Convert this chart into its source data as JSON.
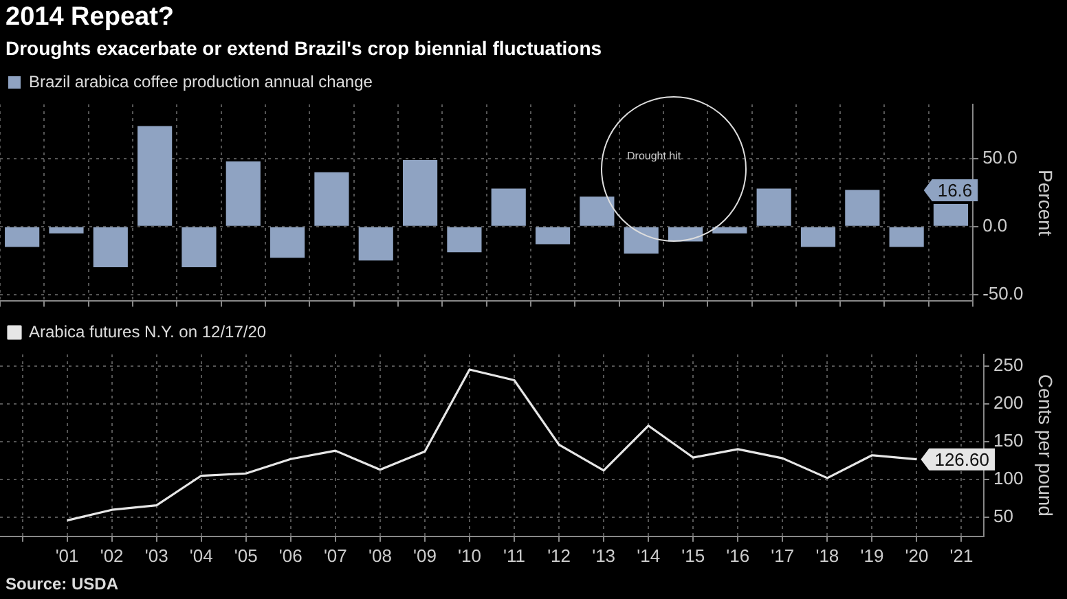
{
  "chart_data": [
    {
      "type": "bar",
      "title": "2014 Repeat?",
      "subtitle": "Droughts exacerbate or extend Brazil's crop biennial fluctuations",
      "ylabel": "Percent",
      "categories": [
        null,
        null,
        null,
        null,
        null,
        null,
        null,
        null,
        null,
        null,
        null,
        null,
        null,
        null,
        null,
        null,
        null,
        null,
        null,
        null,
        null,
        null
      ],
      "series": [
        {
          "name": "Brazil arabica coffee production annual change",
          "color": "#8fa3c2",
          "values": [
            -15,
            -5,
            -30,
            74,
            -30,
            48,
            -23,
            40,
            -25,
            49,
            -19,
            28,
            -13,
            22,
            -20,
            -11,
            -5,
            28,
            -15,
            27,
            -15,
            16.6
          ],
          "value_labels": [
            null,
            null,
            null,
            null,
            null,
            null,
            null,
            null,
            null,
            null,
            null,
            null,
            null,
            null,
            null,
            null,
            null,
            null,
            null,
            null,
            null,
            "16.6"
          ]
        }
      ],
      "ylim": [
        -55,
        90
      ],
      "yticks": [
        {
          "value": 50,
          "label": "50.0"
        },
        {
          "value": 0,
          "label": "0.0"
        },
        {
          "value": -50,
          "label": "-50.0"
        }
      ],
      "grid": true,
      "legend": "top left",
      "tick_labels": "y",
      "annotations": [
        "Drought hit"
      ]
    },
    {
      "type": "line",
      "ylabel": "Cents per pound",
      "categories": [
        null,
        "'01",
        "'02",
        "'03",
        "'04",
        "'05",
        "'06",
        "'07",
        "'08",
        "'09",
        "'10",
        "'11",
        "'12",
        "'13",
        "'14",
        "'15",
        "'16",
        "'17",
        "'18",
        "'19",
        "'20",
        "'21"
      ],
      "series": [
        {
          "name": "Arabica futures N.Y. on 12/17/20",
          "color": "#e6e6e6",
          "values": [
            null,
            46,
            60,
            66,
            105,
            108,
            127,
            138,
            113,
            137,
            245,
            231,
            146,
            112,
            171,
            129,
            140,
            128,
            102,
            132,
            126.6,
            null
          ],
          "value_labels": [
            null,
            null,
            null,
            null,
            null,
            null,
            null,
            null,
            null,
            null,
            null,
            null,
            null,
            null,
            null,
            null,
            null,
            null,
            null,
            null,
            "126.60",
            null
          ]
        }
      ],
      "ylim": [
        25,
        265
      ],
      "yticks": [
        50,
        100,
        150,
        200,
        250
      ],
      "grid": true,
      "legend": "top left",
      "annotations": [
        "Source: USDA"
      ]
    }
  ]
}
